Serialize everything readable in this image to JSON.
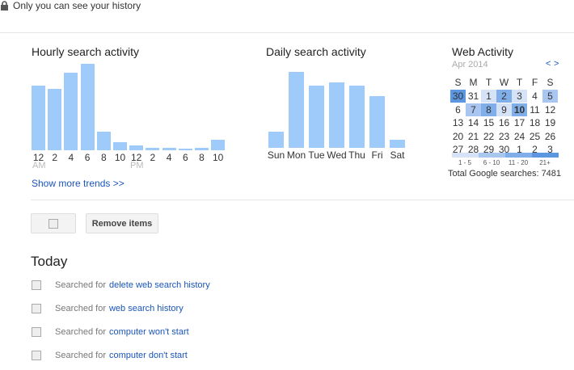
{
  "privacy": {
    "text": "Only you can see your history",
    "icon": "lock-icon"
  },
  "hourly": {
    "title": "Hourly search activity",
    "labels": [
      "12",
      "2",
      "4",
      "6",
      "8",
      "10",
      "12",
      "2",
      "4",
      "6",
      "8",
      "10"
    ],
    "am": "AM",
    "pm": "PM",
    "show_more": "Show more trends >>"
  },
  "daily": {
    "title": "Daily search activity"
  },
  "chart_data": [
    {
      "type": "bar",
      "title": "Hourly search activity",
      "categories": [
        "12",
        "2",
        "4",
        "6",
        "8",
        "10",
        "12",
        "2",
        "4",
        "6",
        "8",
        "10"
      ],
      "values": [
        80,
        76,
        96,
        107,
        23,
        10,
        6,
        3,
        3,
        2,
        3,
        13
      ]
    },
    {
      "type": "bar",
      "title": "Daily search activity",
      "categories": [
        "Sun",
        "Mon",
        "Tue",
        "Wed",
        "Thu",
        "Fri",
        "Sat"
      ],
      "values": [
        20,
        94,
        77,
        81,
        77,
        64,
        10
      ]
    }
  ],
  "web_activity": {
    "title": "Web Activity",
    "month": "Apr 2014",
    "prev": "<",
    "next": ">",
    "weekdays": [
      "S",
      "M",
      "T",
      "W",
      "T",
      "F",
      "S"
    ],
    "weeks": [
      [
        "30",
        "31",
        "1",
        "2",
        "3",
        "4",
        "5"
      ],
      [
        "6",
        "7",
        "8",
        "9",
        "10",
        "11",
        "12"
      ],
      [
        "13",
        "14",
        "15",
        "16",
        "17",
        "18",
        "19"
      ],
      [
        "20",
        "21",
        "22",
        "23",
        "24",
        "25",
        "26"
      ],
      [
        "27",
        "28",
        "29",
        "30",
        "1",
        "2",
        "3"
      ]
    ],
    "levels": [
      [
        4,
        0,
        1,
        3,
        1,
        0,
        2
      ],
      [
        0,
        2,
        3,
        1,
        3,
        0,
        0
      ],
      [
        0,
        0,
        0,
        0,
        0,
        0,
        0
      ],
      [
        0,
        0,
        0,
        0,
        0,
        0,
        0
      ],
      [
        0,
        0,
        0,
        0,
        0,
        0,
        0
      ]
    ],
    "level_colors": [
      "#ffffff",
      "#d6e2f5",
      "#a9c6f0",
      "#80aee9",
      "#5d96e0"
    ],
    "legend": [
      "1 - 5",
      "6 - 10",
      "11 - 20",
      "21+"
    ],
    "total": "Total Google searches: 7481"
  },
  "toolbar": {
    "remove": "Remove items"
  },
  "today": {
    "heading": "Today",
    "prefix": "Searched for",
    "items": [
      "delete web search history",
      "web search history",
      "computer won't start",
      "computer don't start"
    ]
  }
}
